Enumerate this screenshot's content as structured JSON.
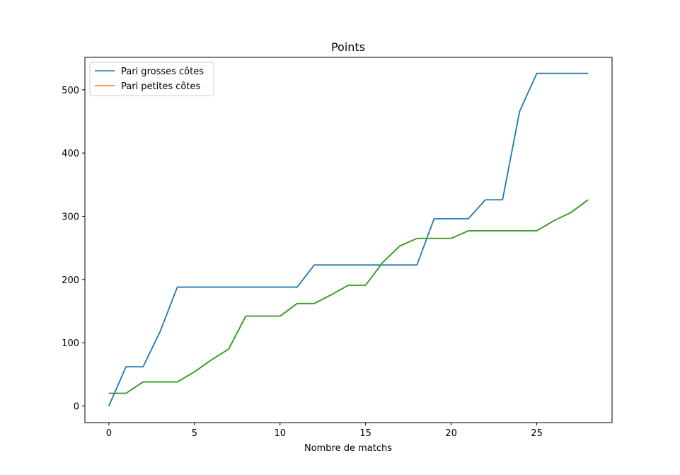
{
  "chart_data": {
    "type": "line",
    "title": "Points",
    "xlabel": "Nombre de matchs",
    "ylabel": "",
    "xlim": [
      -1.4,
      29.4
    ],
    "ylim": [
      -26.3,
      551.3
    ],
    "xticks": [
      0,
      5,
      10,
      15,
      20,
      25
    ],
    "yticks": [
      0,
      100,
      200,
      300,
      400,
      500
    ],
    "grid": false,
    "legend_position": "upper-left",
    "x": [
      0,
      1,
      2,
      3,
      4,
      5,
      6,
      7,
      8,
      9,
      10,
      11,
      12,
      13,
      14,
      15,
      16,
      17,
      18,
      19,
      20,
      21,
      22,
      23,
      24,
      25,
      26,
      27,
      28
    ],
    "series": [
      {
        "name": "Pari grosses côtes",
        "color": "#1f77b4",
        "values": [
          0,
          62,
          62,
          118,
          188,
          188,
          188,
          188,
          188,
          188,
          188,
          188,
          223,
          223,
          223,
          223,
          223,
          223,
          223,
          296,
          296,
          296,
          326,
          326,
          466,
          526,
          526,
          526,
          526
        ]
      },
      {
        "name": "Pari petites côtes",
        "color": "#ff7f0e",
        "values": [
          20,
          20,
          38,
          38,
          38,
          54,
          73,
          90,
          142,
          142,
          142,
          162,
          162,
          176,
          191,
          191,
          227,
          253,
          265,
          265,
          265,
          277,
          277,
          277,
          277,
          277,
          293,
          306,
          326
        ]
      },
      {
        "name": "",
        "color": "#2ca02c",
        "values": [
          20,
          20,
          38,
          38,
          38,
          54,
          73,
          90,
          142,
          142,
          142,
          162,
          162,
          176,
          191,
          191,
          227,
          253,
          265,
          265,
          265,
          277,
          277,
          277,
          277,
          277,
          293,
          306,
          326
        ]
      }
    ]
  }
}
